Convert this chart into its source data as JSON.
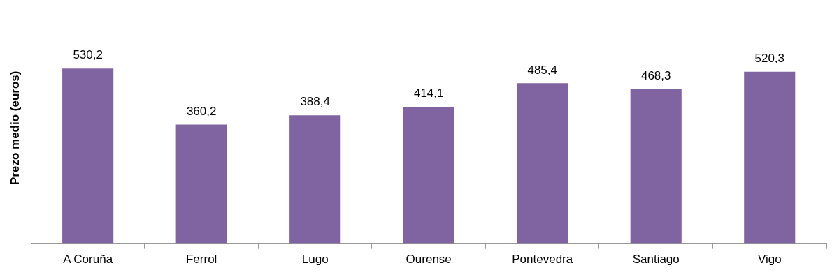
{
  "chart_data": {
    "type": "bar",
    "ylabel": "Prezo medio (euros)",
    "categories": [
      "A Coruña",
      "Ferrol",
      "Lugo",
      "Ourense",
      "Pontevedra",
      "Santiago",
      "Vigo"
    ],
    "values": [
      530.2,
      360.2,
      388.4,
      414.1,
      485.4,
      468.3,
      520.3
    ],
    "value_labels": [
      "530,2",
      "360,2",
      "388,4",
      "414,1",
      "485,4",
      "468,3",
      "520,3"
    ],
    "color": "#8064a2",
    "grid": false,
    "legend": false
  }
}
